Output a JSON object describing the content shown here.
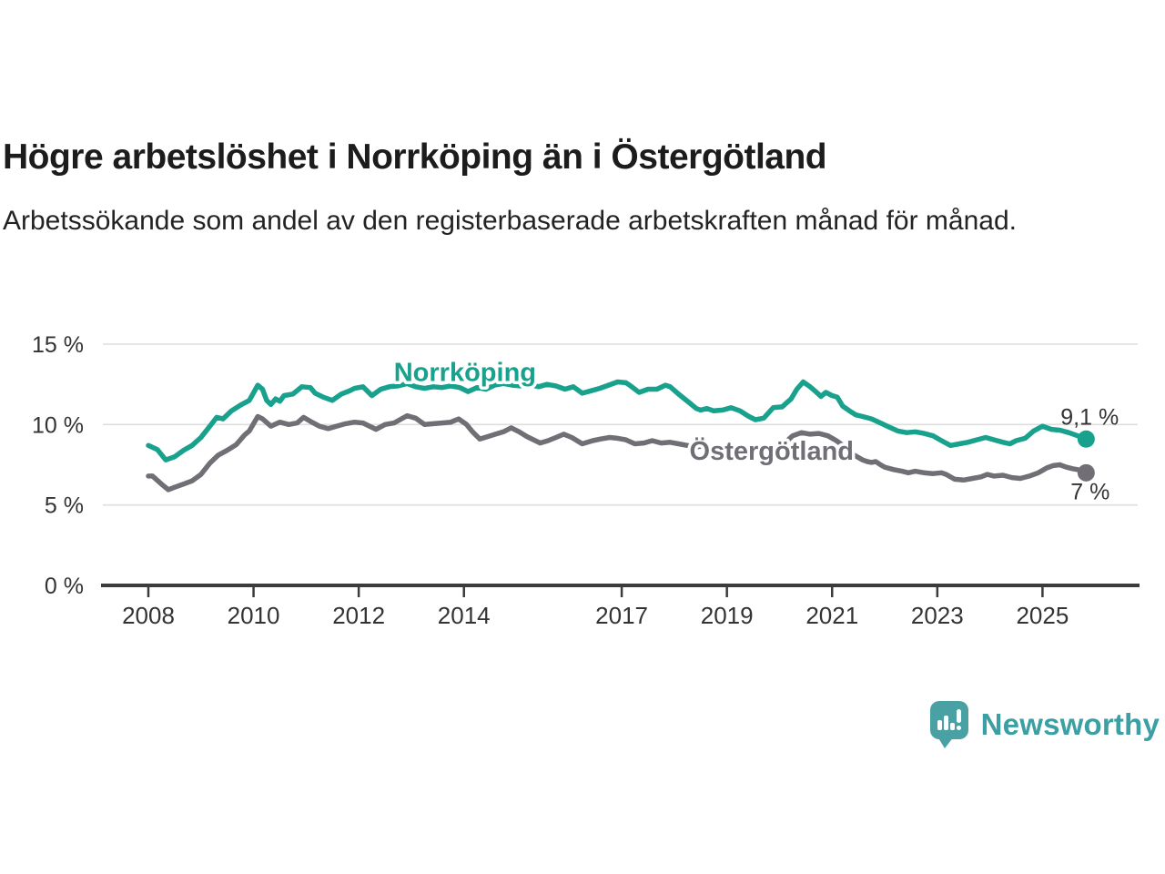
{
  "page": {
    "title": "Högre arbetslöshet i Norrköping än i Östergötland",
    "subtitle": "Arbetssökande som andel av den registerbaserade arbetskraften månad för månad."
  },
  "footer": {
    "brand": "Newsworthy",
    "logo_icon": "bar-chart-speech-bubble-icon"
  },
  "colors": {
    "norrkoping": "#18a18d",
    "ostergotland": "#716f75",
    "axis": "#3b3b3b",
    "grid": "#dedede",
    "tick_label": "#333333",
    "annotation_label": "#333333",
    "logo": "#4aa1a3",
    "logo_text": "#3b9fa3",
    "title_text": "#1c1c1c"
  },
  "chart_data": {
    "type": "line",
    "title": "Högre arbetslöshet i Norrköping än i Östergötland",
    "subtitle": "Arbetssökande som andel av den registerbaserade arbetskraften månad för månad.",
    "xlabel": "",
    "ylabel": "",
    "xlim": [
      2007.135,
      2026.81
    ],
    "ylim": [
      0,
      15
    ],
    "grid": "horizontal",
    "legend_position": "inline-labels",
    "yticks": [
      {
        "value": 0,
        "label": "0 %"
      },
      {
        "value": 5,
        "label": "5 %"
      },
      {
        "value": 10,
        "label": "10 %"
      },
      {
        "value": 15,
        "label": "15 %"
      }
    ],
    "xticks": [
      {
        "value": 2008,
        "label": "2008"
      },
      {
        "value": 2010,
        "label": "2010"
      },
      {
        "value": 2012,
        "label": "2012"
      },
      {
        "value": 2014,
        "label": "2014"
      },
      {
        "value": 2017,
        "label": "2017"
      },
      {
        "value": 2019,
        "label": "2019"
      },
      {
        "value": 2021,
        "label": "2021"
      },
      {
        "value": 2023,
        "label": "2023"
      },
      {
        "value": 2025,
        "label": "2025"
      }
    ],
    "series": [
      {
        "id": "norrkoping",
        "name": "Norrköping",
        "color": "#18a18d",
        "end_dot": true,
        "end_label": "9,1 %",
        "end_value": 9.1,
        "points": [
          [
            2008.0,
            8.7
          ],
          [
            2008.17,
            8.45
          ],
          [
            2008.33,
            7.8
          ],
          [
            2008.5,
            8.0
          ],
          [
            2008.67,
            8.4
          ],
          [
            2008.83,
            8.7
          ],
          [
            2009.0,
            9.2
          ],
          [
            2009.17,
            9.9
          ],
          [
            2009.3,
            10.45
          ],
          [
            2009.42,
            10.35
          ],
          [
            2009.58,
            10.85
          ],
          [
            2009.75,
            11.2
          ],
          [
            2009.92,
            11.5
          ],
          [
            2010.08,
            12.45
          ],
          [
            2010.17,
            12.2
          ],
          [
            2010.25,
            11.5
          ],
          [
            2010.33,
            11.25
          ],
          [
            2010.42,
            11.6
          ],
          [
            2010.5,
            11.45
          ],
          [
            2010.58,
            11.8
          ],
          [
            2010.75,
            11.9
          ],
          [
            2010.92,
            12.35
          ],
          [
            2011.08,
            12.3
          ],
          [
            2011.17,
            11.95
          ],
          [
            2011.33,
            11.7
          ],
          [
            2011.5,
            11.5
          ],
          [
            2011.67,
            11.9
          ],
          [
            2011.83,
            12.1
          ],
          [
            2011.92,
            12.25
          ],
          [
            2012.08,
            12.35
          ],
          [
            2012.25,
            11.8
          ],
          [
            2012.42,
            12.2
          ],
          [
            2012.58,
            12.35
          ],
          [
            2012.75,
            12.4
          ],
          [
            2012.92,
            12.55
          ],
          [
            2013.08,
            12.35
          ],
          [
            2013.25,
            12.25
          ],
          [
            2013.42,
            12.35
          ],
          [
            2013.58,
            12.3
          ],
          [
            2013.75,
            12.4
          ],
          [
            2013.92,
            12.3
          ],
          [
            2014.08,
            12.05
          ],
          [
            2014.25,
            12.3
          ],
          [
            2014.42,
            12.2
          ],
          [
            2014.58,
            12.45
          ],
          [
            2014.75,
            12.55
          ],
          [
            2014.92,
            12.45
          ],
          [
            2015.08,
            12.4
          ],
          [
            2015.25,
            12.5
          ],
          [
            2015.42,
            12.35
          ],
          [
            2015.58,
            12.5
          ],
          [
            2015.75,
            12.4
          ],
          [
            2015.92,
            12.2
          ],
          [
            2016.08,
            12.35
          ],
          [
            2016.25,
            11.95
          ],
          [
            2016.42,
            12.1
          ],
          [
            2016.58,
            12.25
          ],
          [
            2016.75,
            12.45
          ],
          [
            2016.92,
            12.65
          ],
          [
            2017.08,
            12.6
          ],
          [
            2017.17,
            12.4
          ],
          [
            2017.33,
            12.0
          ],
          [
            2017.5,
            12.2
          ],
          [
            2017.67,
            12.2
          ],
          [
            2017.83,
            12.45
          ],
          [
            2017.92,
            12.35
          ],
          [
            2018.08,
            11.9
          ],
          [
            2018.25,
            11.45
          ],
          [
            2018.42,
            11.0
          ],
          [
            2018.5,
            10.9
          ],
          [
            2018.62,
            11.0
          ],
          [
            2018.75,
            10.85
          ],
          [
            2018.92,
            10.9
          ],
          [
            2019.08,
            11.05
          ],
          [
            2019.25,
            10.85
          ],
          [
            2019.42,
            10.5
          ],
          [
            2019.54,
            10.3
          ],
          [
            2019.7,
            10.4
          ],
          [
            2019.88,
            11.05
          ],
          [
            2020.05,
            11.1
          ],
          [
            2020.22,
            11.6
          ],
          [
            2020.33,
            12.2
          ],
          [
            2020.45,
            12.65
          ],
          [
            2020.58,
            12.35
          ],
          [
            2020.67,
            12.1
          ],
          [
            2020.79,
            11.75
          ],
          [
            2020.88,
            12.0
          ],
          [
            2021.0,
            11.8
          ],
          [
            2021.1,
            11.7
          ],
          [
            2021.2,
            11.15
          ],
          [
            2021.33,
            10.85
          ],
          [
            2021.45,
            10.6
          ],
          [
            2021.58,
            10.5
          ],
          [
            2021.75,
            10.35
          ],
          [
            2021.92,
            10.1
          ],
          [
            2022.08,
            9.85
          ],
          [
            2022.25,
            9.6
          ],
          [
            2022.42,
            9.5
          ],
          [
            2022.58,
            9.55
          ],
          [
            2022.75,
            9.45
          ],
          [
            2022.92,
            9.3
          ],
          [
            2023.08,
            9.0
          ],
          [
            2023.25,
            8.7
          ],
          [
            2023.42,
            8.8
          ],
          [
            2023.58,
            8.9
          ],
          [
            2023.75,
            9.05
          ],
          [
            2023.92,
            9.2
          ],
          [
            2024.08,
            9.05
          ],
          [
            2024.25,
            8.9
          ],
          [
            2024.38,
            8.8
          ],
          [
            2024.5,
            9.0
          ],
          [
            2024.67,
            9.15
          ],
          [
            2024.83,
            9.6
          ],
          [
            2025.0,
            9.9
          ],
          [
            2025.17,
            9.7
          ],
          [
            2025.33,
            9.65
          ],
          [
            2025.5,
            9.5
          ],
          [
            2025.67,
            9.3
          ],
          [
            2025.83,
            9.1
          ]
        ]
      },
      {
        "id": "ostergotland",
        "name": "Östergötland",
        "color": "#716f75",
        "end_dot": true,
        "end_label": "7 %",
        "end_value": 7.0,
        "points": [
          [
            2008.0,
            6.8
          ],
          [
            2008.08,
            6.8
          ],
          [
            2008.25,
            6.3
          ],
          [
            2008.38,
            5.95
          ],
          [
            2008.5,
            6.1
          ],
          [
            2008.67,
            6.3
          ],
          [
            2008.83,
            6.5
          ],
          [
            2009.0,
            6.9
          ],
          [
            2009.17,
            7.6
          ],
          [
            2009.33,
            8.1
          ],
          [
            2009.5,
            8.4
          ],
          [
            2009.67,
            8.75
          ],
          [
            2009.83,
            9.35
          ],
          [
            2009.92,
            9.6
          ],
          [
            2010.08,
            10.5
          ],
          [
            2010.17,
            10.35
          ],
          [
            2010.33,
            9.9
          ],
          [
            2010.5,
            10.15
          ],
          [
            2010.67,
            10.0
          ],
          [
            2010.83,
            10.1
          ],
          [
            2010.95,
            10.45
          ],
          [
            2011.08,
            10.2
          ],
          [
            2011.25,
            9.9
          ],
          [
            2011.42,
            9.75
          ],
          [
            2011.58,
            9.9
          ],
          [
            2011.75,
            10.05
          ],
          [
            2011.92,
            10.15
          ],
          [
            2012.08,
            10.1
          ],
          [
            2012.33,
            9.7
          ],
          [
            2012.5,
            10.0
          ],
          [
            2012.67,
            10.1
          ],
          [
            2012.92,
            10.55
          ],
          [
            2013.08,
            10.4
          ],
          [
            2013.25,
            10.0
          ],
          [
            2013.42,
            10.05
          ],
          [
            2013.58,
            10.1
          ],
          [
            2013.75,
            10.15
          ],
          [
            2013.9,
            10.35
          ],
          [
            2014.05,
            10.0
          ],
          [
            2014.15,
            9.6
          ],
          [
            2014.3,
            9.1
          ],
          [
            2014.45,
            9.25
          ],
          [
            2014.6,
            9.4
          ],
          [
            2014.75,
            9.55
          ],
          [
            2014.9,
            9.8
          ],
          [
            2015.05,
            9.55
          ],
          [
            2015.2,
            9.25
          ],
          [
            2015.45,
            8.85
          ],
          [
            2015.6,
            9.0
          ],
          [
            2015.75,
            9.2
          ],
          [
            2015.9,
            9.4
          ],
          [
            2016.05,
            9.2
          ],
          [
            2016.25,
            8.8
          ],
          [
            2016.45,
            9.0
          ],
          [
            2016.6,
            9.1
          ],
          [
            2016.77,
            9.2
          ],
          [
            2016.92,
            9.15
          ],
          [
            2017.08,
            9.05
          ],
          [
            2017.25,
            8.8
          ],
          [
            2017.42,
            8.85
          ],
          [
            2017.58,
            9.0
          ],
          [
            2017.75,
            8.85
          ],
          [
            2017.92,
            8.9
          ],
          [
            2018.08,
            8.8
          ],
          [
            2018.25,
            8.7
          ],
          [
            2018.42,
            8.6
          ],
          [
            2018.58,
            8.7
          ],
          [
            2018.75,
            8.55
          ],
          [
            2018.92,
            8.6
          ],
          [
            2019.08,
            8.5
          ],
          [
            2019.25,
            8.4
          ],
          [
            2019.42,
            8.3
          ],
          [
            2019.58,
            8.25
          ],
          [
            2019.75,
            8.4
          ],
          [
            2019.92,
            8.55
          ],
          [
            2020.08,
            8.8
          ],
          [
            2020.25,
            9.3
          ],
          [
            2020.42,
            9.5
          ],
          [
            2020.58,
            9.4
          ],
          [
            2020.75,
            9.45
          ],
          [
            2020.92,
            9.3
          ],
          [
            2021.08,
            9.0
          ],
          [
            2021.25,
            8.6
          ],
          [
            2021.42,
            8.1
          ],
          [
            2021.58,
            7.8
          ],
          [
            2021.67,
            7.7
          ],
          [
            2021.75,
            7.65
          ],
          [
            2021.83,
            7.7
          ],
          [
            2021.92,
            7.5
          ],
          [
            2022.0,
            7.35
          ],
          [
            2022.17,
            7.2
          ],
          [
            2022.33,
            7.1
          ],
          [
            2022.45,
            7.0
          ],
          [
            2022.58,
            7.1
          ],
          [
            2022.75,
            7.0
          ],
          [
            2022.92,
            6.95
          ],
          [
            2023.08,
            7.0
          ],
          [
            2023.17,
            6.9
          ],
          [
            2023.33,
            6.6
          ],
          [
            2023.5,
            6.55
          ],
          [
            2023.67,
            6.65
          ],
          [
            2023.83,
            6.75
          ],
          [
            2023.95,
            6.9
          ],
          [
            2024.08,
            6.8
          ],
          [
            2024.25,
            6.85
          ],
          [
            2024.42,
            6.7
          ],
          [
            2024.58,
            6.65
          ],
          [
            2024.75,
            6.8
          ],
          [
            2024.92,
            7.0
          ],
          [
            2025.08,
            7.3
          ],
          [
            2025.2,
            7.45
          ],
          [
            2025.33,
            7.5
          ],
          [
            2025.45,
            7.35
          ],
          [
            2025.58,
            7.25
          ],
          [
            2025.67,
            7.2
          ],
          [
            2025.75,
            7.1
          ],
          [
            2025.83,
            7.0
          ]
        ]
      }
    ],
    "annotations": [
      {
        "id": "label-norrkoping",
        "text": "Norrköping",
        "x": 2014.02,
        "y": 12.72,
        "anchor": "middle",
        "color": "#18a18d",
        "size": 29,
        "weight": "bold",
        "halo": true
      },
      {
        "id": "label-ostergotland",
        "text": "Östergötland",
        "x": 2019.85,
        "y": 7.8,
        "anchor": "middle",
        "color": "#716f75",
        "size": 29,
        "weight": "bold",
        "halo": true
      },
      {
        "id": "end-label-norrkoping",
        "text": "9,1 %",
        "x": 2026.45,
        "y": 10.0,
        "anchor": "end",
        "color": "#333333",
        "size": 25,
        "weight": "normal",
        "halo": false
      },
      {
        "id": "end-label-ostergotland",
        "text": "7 %",
        "x": 2026.28,
        "y": 5.35,
        "anchor": "end",
        "color": "#333333",
        "size": 25,
        "weight": "normal",
        "halo": false
      }
    ]
  }
}
